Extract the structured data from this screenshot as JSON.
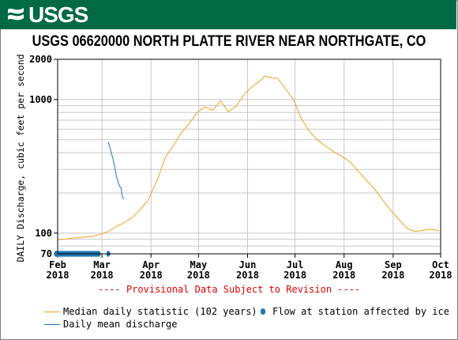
{
  "header": {
    "logo_text": "USGS",
    "background_color": "#006a45"
  },
  "chart_data": {
    "type": "line",
    "title": "USGS 06620000 NORTH PLATTE RIVER NEAR NORTHGATE, CO",
    "ylabel": "DAILY Discharge, cubic feet per second",
    "yscale": "log",
    "ylim": [
      70,
      2000
    ],
    "y_ticks": [
      70,
      100,
      1000,
      2000
    ],
    "x_ticks": [
      {
        "date": "2018-02-01",
        "label": [
          "Feb",
          "2018"
        ]
      },
      {
        "date": "2018-03-01",
        "label": [
          "Mar",
          "2018"
        ]
      },
      {
        "date": "2018-04-01",
        "label": [
          "Apr",
          "2018"
        ]
      },
      {
        "date": "2018-05-01",
        "label": [
          "May",
          "2018"
        ]
      },
      {
        "date": "2018-06-01",
        "label": [
          "Jun",
          "2018"
        ]
      },
      {
        "date": "2018-07-01",
        "label": [
          "Jul",
          "2018"
        ]
      },
      {
        "date": "2018-08-01",
        "label": [
          "Aug",
          "2018"
        ]
      },
      {
        "date": "2018-09-01",
        "label": [
          "Sep",
          "2018"
        ]
      },
      {
        "date": "2018-10-01",
        "label": [
          "Oct",
          "2018"
        ]
      }
    ],
    "grid": true,
    "annotation": "---- Provisional Data Subject to Revision ----",
    "annotation_color": "#e00000",
    "legend_placement": "bottom",
    "series": [
      {
        "name": "Median daily statistic (102 years)",
        "color": "#f0a020",
        "points": [
          [
            "2018-02-01",
            89
          ],
          [
            "2018-02-08",
            91
          ],
          [
            "2018-02-15",
            93
          ],
          [
            "2018-02-22",
            94
          ],
          [
            "2018-03-01",
            99
          ],
          [
            "2018-03-05",
            103
          ],
          [
            "2018-03-10",
            112
          ],
          [
            "2018-03-15",
            120
          ],
          [
            "2018-03-20",
            130
          ],
          [
            "2018-03-25",
            150
          ],
          [
            "2018-03-30",
            175
          ],
          [
            "2018-04-05",
            250
          ],
          [
            "2018-04-10",
            370
          ],
          [
            "2018-04-15",
            450
          ],
          [
            "2018-04-20",
            560
          ],
          [
            "2018-04-25",
            660
          ],
          [
            "2018-04-30",
            800
          ],
          [
            "2018-05-05",
            880
          ],
          [
            "2018-05-10",
            830
          ],
          [
            "2018-05-15",
            980
          ],
          [
            "2018-05-20",
            810
          ],
          [
            "2018-05-25",
            900
          ],
          [
            "2018-05-30",
            1100
          ],
          [
            "2018-06-04",
            1250
          ],
          [
            "2018-06-09",
            1380
          ],
          [
            "2018-06-12",
            1500
          ],
          [
            "2018-06-16",
            1450
          ],
          [
            "2018-06-20",
            1440
          ],
          [
            "2018-06-25",
            1200
          ],
          [
            "2018-06-30",
            1000
          ],
          [
            "2018-07-05",
            720
          ],
          [
            "2018-07-10",
            580
          ],
          [
            "2018-07-15",
            500
          ],
          [
            "2018-07-20",
            450
          ],
          [
            "2018-07-25",
            410
          ],
          [
            "2018-07-30",
            380
          ],
          [
            "2018-08-05",
            340
          ],
          [
            "2018-08-10",
            290
          ],
          [
            "2018-08-15",
            250
          ],
          [
            "2018-08-20",
            215
          ],
          [
            "2018-08-25",
            180
          ],
          [
            "2018-08-30",
            150
          ],
          [
            "2018-09-05",
            125
          ],
          [
            "2018-09-10",
            108
          ],
          [
            "2018-09-15",
            103
          ],
          [
            "2018-09-20",
            105
          ],
          [
            "2018-09-25",
            107
          ],
          [
            "2018-09-30",
            104
          ]
        ]
      },
      {
        "name": "Daily mean discharge",
        "color": "#1f77b4",
        "points": [
          [
            "2018-03-05",
            480
          ],
          [
            "2018-03-06",
            440
          ],
          [
            "2018-03-07",
            395
          ],
          [
            "2018-03-08",
            360
          ],
          [
            "2018-03-09",
            315
          ],
          [
            "2018-03-10",
            270
          ],
          [
            "2018-03-11",
            245
          ],
          [
            "2018-03-12",
            225
          ],
          [
            "2018-03-13",
            220
          ],
          [
            "2018-03-14",
            185
          ],
          [
            "2018-03-15",
            180
          ]
        ]
      }
    ],
    "ice_affected": {
      "name": "Flow at station affected by ice",
      "color": "#1f77b4",
      "value": 70,
      "dates": [
        "2018-01-31",
        "2018-02-01",
        "2018-02-02",
        "2018-02-03",
        "2018-02-04",
        "2018-02-05",
        "2018-02-06",
        "2018-02-07",
        "2018-02-08",
        "2018-02-09",
        "2018-02-10",
        "2018-02-11",
        "2018-02-12",
        "2018-02-13",
        "2018-02-14",
        "2018-02-15",
        "2018-02-16",
        "2018-02-17",
        "2018-02-18",
        "2018-02-19",
        "2018-02-20",
        "2018-02-21",
        "2018-02-22",
        "2018-02-23",
        "2018-02-24",
        "2018-02-25",
        "2018-02-26",
        "2018-02-27",
        "2018-03-05"
      ]
    }
  }
}
